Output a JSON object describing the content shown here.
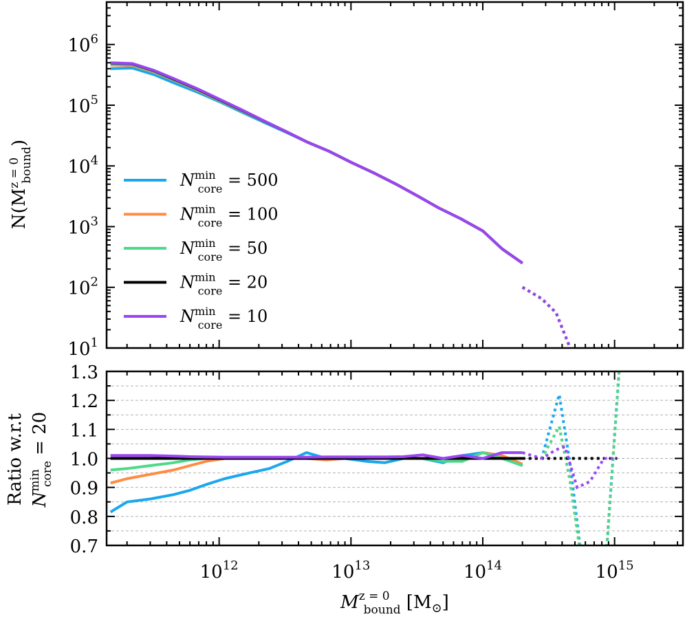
{
  "chart_data": [
    {
      "type": "line",
      "panel": "top",
      "x_scale": "log",
      "y_scale": "log",
      "xlim": [
        140000000000.0,
        3300000000000000.0
      ],
      "ylim": [
        10,
        5000000.0
      ],
      "ylabel": "N(M_bound^{z=0})",
      "ylabel_parts": {
        "main": "N(M",
        "sup": "z = 0",
        "sub": "bound",
        "close": ")"
      },
      "y_ticks": [
        {
          "value": 10.0,
          "base": "10",
          "exp": "1"
        },
        {
          "value": 100.0,
          "base": "10",
          "exp": "2"
        },
        {
          "value": 1000.0,
          "base": "10",
          "exp": "3"
        },
        {
          "value": 10000.0,
          "base": "10",
          "exp": "4"
        },
        {
          "value": 100000.0,
          "base": "10",
          "exp": "5"
        },
        {
          "value": 1000000.0,
          "base": "10",
          "exp": "6"
        }
      ],
      "legend_position": "center-left",
      "series": [
        {
          "name": "N_core^min = 500",
          "label": {
            "N": "N",
            "sub": "core",
            "sup": "min",
            "eq": " = 500"
          },
          "color": "#1aa7ec",
          "x": [
            150000000000.0,
            220000000000.0,
            320000000000.0,
            460000000000.0,
            680000000000.0,
            1000000000000.0,
            1500000000000.0,
            2200000000000.0,
            3200000000000.0,
            4600000000000.0,
            6800000000000.0,
            10000000000000.0,
            15000000000000.0,
            22000000000000.0,
            32000000000000.0,
            46000000000000.0,
            68000000000000.0,
            100000000000000.0,
            140000000000000.0,
            200000000000000.0
          ],
          "y": [
            400000.0,
            410000.0,
            320000.0,
            230000.0,
            165000.0,
            115000.0,
            76000.0,
            52000.0,
            36000.0,
            25000.0,
            17500.0,
            11500.0,
            7600.0,
            5000.0,
            3200.0,
            2050.0,
            1350.0,
            850.0,
            430.0,
            250.0
          ],
          "dotted_x": [
            200000000000000.0,
            280000000000000.0,
            360000000000000.0,
            460000000000000.0
          ],
          "dotted_y": [
            100.0,
            65.0,
            38.0,
            10.0
          ]
        },
        {
          "name": "N_core^min = 100",
          "label": {
            "N": "N",
            "sub": "core",
            "sup": "min",
            "eq": " = 100"
          },
          "color": "#ff8c42",
          "x": [
            150000000000.0,
            220000000000.0,
            320000000000.0,
            460000000000.0,
            680000000000.0,
            1000000000000.0,
            1500000000000.0,
            2200000000000.0,
            3200000000000.0,
            4600000000000.0,
            6800000000000.0,
            10000000000000.0,
            15000000000000.0,
            22000000000000.0,
            32000000000000.0,
            46000000000000.0,
            68000000000000.0,
            100000000000000.0,
            140000000000000.0,
            200000000000000.0
          ],
          "y": [
            460000.0,
            450000.0,
            350000.0,
            255000.0,
            178000.0,
            120000.0,
            80000.0,
            54000.0,
            37000.0,
            25000.0,
            17500.0,
            11500.0,
            7600.0,
            5000.0,
            3200.0,
            2050.0,
            1350.0,
            850.0,
            430.0,
            250.0
          ],
          "dotted_x": [
            200000000000000.0,
            280000000000000.0,
            360000000000000.0,
            460000000000000.0
          ],
          "dotted_y": [
            100.0,
            65.0,
            38.0,
            10.0
          ]
        },
        {
          "name": "N_core^min = 50",
          "label": {
            "N": "N",
            "sub": "core",
            "sup": "min",
            "eq": " = 50"
          },
          "color": "#4cd98a",
          "x": [
            150000000000.0,
            220000000000.0,
            320000000000.0,
            460000000000.0,
            680000000000.0,
            1000000000000.0,
            1500000000000.0,
            2200000000000.0,
            3200000000000.0,
            4600000000000.0,
            6800000000000.0,
            10000000000000.0,
            15000000000000.0,
            22000000000000.0,
            32000000000000.0,
            46000000000000.0,
            68000000000000.0,
            100000000000000.0,
            140000000000000.0,
            200000000000000.0
          ],
          "y": [
            480000.0,
            465000.0,
            360000.0,
            260000.0,
            182000.0,
            122000.0,
            81000.0,
            54000.0,
            37000.0,
            25000.0,
            17500.0,
            11500.0,
            7600.0,
            5000.0,
            3200.0,
            2050.0,
            1350.0,
            850.0,
            430.0,
            250.0
          ],
          "dotted_x": [
            200000000000000.0,
            280000000000000.0,
            360000000000000.0,
            460000000000000.0
          ],
          "dotted_y": [
            100.0,
            65.0,
            38.0,
            10.0
          ]
        },
        {
          "name": "N_core^min = 20",
          "label": {
            "N": "N",
            "sub": "core",
            "sup": "min",
            "eq": " = 20"
          },
          "color": "#000000",
          "x": [
            150000000000.0,
            220000000000.0,
            320000000000.0,
            460000000000.0,
            680000000000.0,
            1000000000000.0,
            1500000000000.0,
            2200000000000.0,
            3200000000000.0,
            4600000000000.0,
            6800000000000.0,
            10000000000000.0,
            15000000000000.0,
            22000000000000.0,
            32000000000000.0,
            46000000000000.0,
            68000000000000.0,
            100000000000000.0,
            140000000000000.0,
            200000000000000.0
          ],
          "y": [
            495000.0,
            480000.0,
            370000.0,
            265000.0,
            185000.0,
            124000.0,
            82000.0,
            54500.0,
            37000.0,
            25000.0,
            17500.0,
            11500.0,
            7600.0,
            5000.0,
            3200.0,
            2050.0,
            1350.0,
            850.0,
            430.0,
            250.0
          ],
          "dotted_x": [
            200000000000000.0,
            280000000000000.0,
            360000000000000.0,
            460000000000000.0
          ],
          "dotted_y": [
            100.0,
            65.0,
            38.0,
            10.0
          ]
        },
        {
          "name": "N_core^min = 10",
          "label": {
            "N": "N",
            "sub": "core",
            "sup": "min",
            "eq": " = 10"
          },
          "color": "#9b45f0",
          "x": [
            150000000000.0,
            220000000000.0,
            320000000000.0,
            460000000000.0,
            680000000000.0,
            1000000000000.0,
            1500000000000.0,
            2200000000000.0,
            3200000000000.0,
            4600000000000.0,
            6800000000000.0,
            10000000000000.0,
            15000000000000.0,
            22000000000000.0,
            32000000000000.0,
            46000000000000.0,
            68000000000000.0,
            100000000000000.0,
            140000000000000.0,
            200000000000000.0
          ],
          "y": [
            500000.0,
            485000.0,
            375000.0,
            270000.0,
            188000.0,
            126000.0,
            83000.0,
            55000.0,
            37000.0,
            25000.0,
            17500.0,
            11500.0,
            7600.0,
            5000.0,
            3200.0,
            2050.0,
            1350.0,
            850.0,
            430.0,
            250.0
          ],
          "dotted_x": [
            200000000000000.0,
            280000000000000.0,
            360000000000000.0,
            460000000000000.0
          ],
          "dotted_y": [
            100.0,
            65.0,
            38.0,
            10.0
          ]
        }
      ]
    },
    {
      "type": "line",
      "panel": "bottom",
      "x_scale": "log",
      "y_scale": "linear",
      "xlim": [
        140000000000.0,
        3300000000000000.0
      ],
      "ylim": [
        0.7,
        1.3
      ],
      "grid": "horizontal dashed",
      "ylabel_line1": "Ratio w.r.t",
      "ylabel_line2": {
        "N": "N",
        "sub": "core",
        "sup": "min",
        "eq": " = 20"
      },
      "xlabel": {
        "main": "M",
        "sup": "z = 0",
        "sub": "bound",
        "unit": " [M",
        "unit_sub": "⊙",
        "close": "]"
      },
      "y_ticks": [
        "0.7",
        "0.8",
        "0.9",
        "1.0",
        "1.1",
        "1.2",
        "1.3"
      ],
      "x_ticks": [
        {
          "value": 1000000000000.0,
          "base": "10",
          "exp": "12"
        },
        {
          "value": 10000000000000.0,
          "base": "10",
          "exp": "13"
        },
        {
          "value": 100000000000000.0,
          "base": "10",
          "exp": "14"
        },
        {
          "value": 1000000000000000.0,
          "base": "10",
          "exp": "15"
        }
      ],
      "series": [
        {
          "name": "N_core^min = 500",
          "color": "#1aa7ec",
          "x": [
            150000000000.0,
            200000000000.0,
            300000000000.0,
            450000000000.0,
            600000000000.0,
            800000000000.0,
            1100000000000.0,
            1700000000000.0,
            2400000000000.0,
            3300000000000.0,
            4600000000000.0,
            6500000000000.0,
            9000000000000.0,
            13000000000000.0,
            18000000000000.0,
            25000000000000.0,
            35000000000000.0,
            50000000000000.0,
            70000000000000.0,
            100000000000000.0,
            140000000000000.0,
            200000000000000.0
          ],
          "y": [
            0.815,
            0.85,
            0.86,
            0.875,
            0.89,
            0.91,
            0.93,
            0.95,
            0.965,
            0.99,
            1.02,
            1.0,
            1.0,
            0.99,
            0.985,
            1.0,
            1.0,
            0.985,
            1.01,
            1.02,
            1.01,
            0.975
          ],
          "dotted_x": [
            200000000000000.0,
            280000000000000.0,
            380000000000000.0,
            460000000000000.0,
            580000000000000.0,
            830000000000000.0,
            1100000000000000.0
          ],
          "dotted_y": [
            1.0,
            1.0,
            1.22,
            0.98,
            0.6,
            0.55,
            1.35
          ]
        },
        {
          "name": "N_core^min = 100",
          "color": "#ff8c42",
          "x": [
            150000000000.0,
            200000000000.0,
            300000000000.0,
            450000000000.0,
            600000000000.0,
            800000000000.0,
            1100000000000.0,
            1700000000000.0,
            2400000000000.0,
            3300000000000.0,
            4600000000000.0,
            6500000000000.0,
            9000000000000.0,
            13000000000000.0,
            18000000000000.0,
            25000000000000.0,
            35000000000000.0,
            50000000000000.0,
            70000000000000.0,
            100000000000000.0,
            140000000000000.0,
            200000000000000.0
          ],
          "y": [
            0.915,
            0.93,
            0.945,
            0.96,
            0.975,
            0.99,
            1.0,
            1.0,
            1.0,
            1.0,
            1.0,
            0.995,
            1.0,
            1.0,
            1.0,
            1.0,
            1.0,
            0.995,
            0.99,
            1.02,
            1.01,
            0.98
          ],
          "dotted_x": [
            200000000000000.0,
            280000000000000.0,
            380000000000000.0,
            460000000000000.0,
            580000000000000.0,
            830000000000000.0,
            1100000000000000.0
          ],
          "dotted_y": [
            1.0,
            1.0,
            1.11,
            0.92,
            0.6,
            0.55,
            1.35
          ]
        },
        {
          "name": "N_core^min = 50",
          "color": "#4cd98a",
          "x": [
            150000000000.0,
            200000000000.0,
            300000000000.0,
            450000000000.0,
            600000000000.0,
            800000000000.0,
            1100000000000.0,
            1700000000000.0,
            2400000000000.0,
            3300000000000.0,
            4600000000000.0,
            6500000000000.0,
            9000000000000.0,
            13000000000000.0,
            18000000000000.0,
            25000000000000.0,
            35000000000000.0,
            50000000000000.0,
            70000000000000.0,
            100000000000000.0,
            140000000000000.0,
            200000000000000.0
          ],
          "y": [
            0.96,
            0.965,
            0.975,
            0.985,
            0.995,
            1.0,
            1.0,
            1.0,
            1.0,
            1.0,
            1.0,
            1.0,
            1.0,
            1.0,
            1.0,
            1.0,
            1.0,
            0.99,
            0.99,
            1.02,
            1.0,
            0.975
          ],
          "dotted_x": [
            200000000000000.0,
            280000000000000.0,
            380000000000000.0,
            460000000000000.0,
            580000000000000.0,
            830000000000000.0,
            1100000000000000.0
          ],
          "dotted_y": [
            1.0,
            1.0,
            1.11,
            0.92,
            0.6,
            0.55,
            1.35
          ]
        },
        {
          "name": "N_core^min = 20",
          "color": "#000000",
          "x": [
            150000000000.0,
            200000000000000.0
          ],
          "y": [
            1.0,
            1.0
          ],
          "dotted_x": [
            200000000000000.0,
            1050000000000000.0
          ],
          "dotted_y": [
            1.0,
            1.0
          ]
        },
        {
          "name": "N_core^min = 10",
          "color": "#9b45f0",
          "x": [
            150000000000.0,
            200000000000.0,
            300000000000.0,
            450000000000.0,
            600000000000.0,
            800000000000.0,
            1100000000000.0,
            1700000000000.0,
            2400000000000.0,
            3300000000000.0,
            4600000000000.0,
            6500000000000.0,
            9000000000000.0,
            13000000000000.0,
            18000000000000.0,
            25000000000000.0,
            35000000000000.0,
            50000000000000.0,
            70000000000000.0,
            100000000000000.0,
            140000000000000.0,
            200000000000000.0
          ],
          "y": [
            1.01,
            1.01,
            1.01,
            1.008,
            1.006,
            1.005,
            1.004,
            1.004,
            1.004,
            1.004,
            1.004,
            1.005,
            1.005,
            1.005,
            1.005,
            1.006,
            1.012,
            1.0,
            1.01,
            1.0,
            1.02,
            1.02
          ],
          "dotted_x": [
            200000000000000.0,
            280000000000000.0,
            360000000000000.0,
            420000000000000.0,
            520000000000000.0,
            650000000000000.0,
            830000000000000.0,
            1050000000000000.0
          ],
          "dotted_y": [
            1.02,
            1.0,
            1.03,
            1.04,
            0.9,
            0.92,
            1.0,
            1.0
          ]
        }
      ]
    }
  ]
}
